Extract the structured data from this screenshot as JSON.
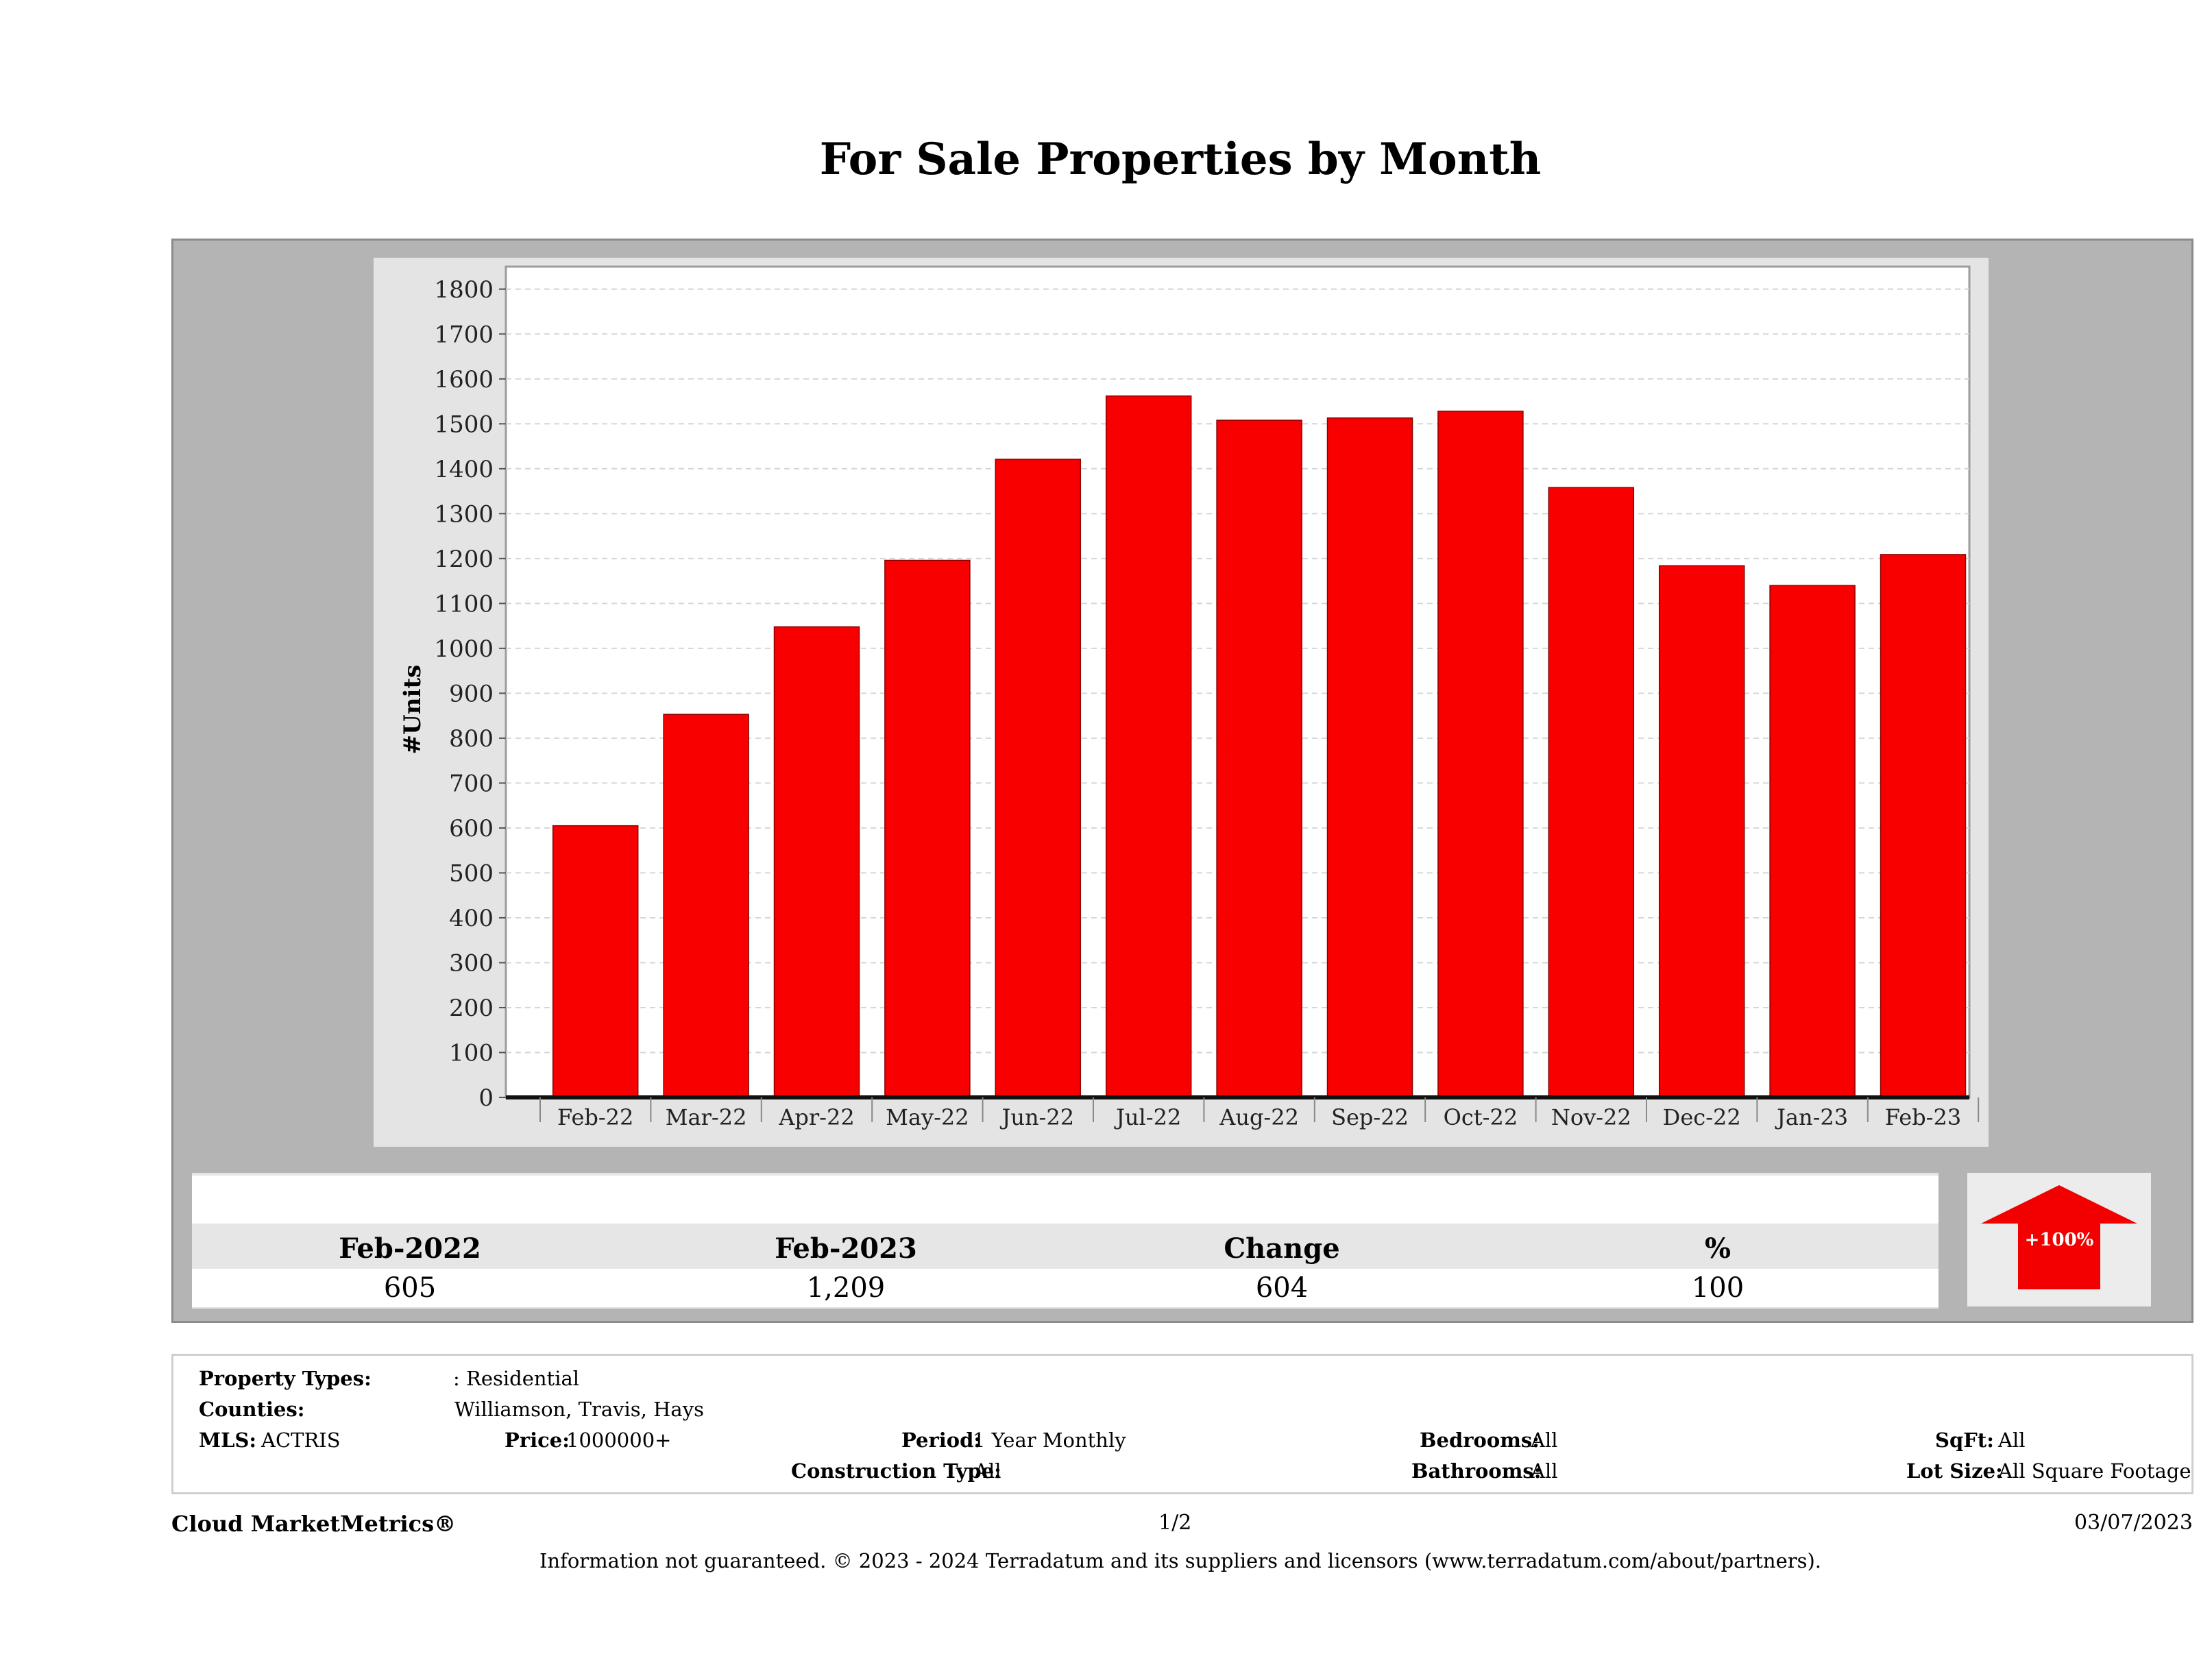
{
  "title": "For Sale Properties by Month",
  "colors": {
    "bar": "#f90000",
    "panel": "#b4b4b4",
    "plot_bg": "#ffffff",
    "arrow": "#f20000"
  },
  "chart_data": {
    "type": "bar",
    "title": "For Sale Properties by Month",
    "xlabel": "",
    "ylabel": "#Units",
    "categories": [
      "Feb-22",
      "Mar-22",
      "Apr-22",
      "May-22",
      "Jun-22",
      "Jul-22",
      "Aug-22",
      "Sep-22",
      "Oct-22",
      "Nov-22",
      "Dec-22",
      "Jan-23",
      "Feb-23"
    ],
    "values": [
      605,
      853,
      1048,
      1196,
      1421,
      1562,
      1508,
      1513,
      1528,
      1358,
      1184,
      1140,
      1209
    ],
    "ylim": [
      0,
      1850
    ],
    "yticks": [
      0,
      100,
      200,
      300,
      400,
      500,
      600,
      700,
      800,
      900,
      1000,
      1100,
      1200,
      1300,
      1400,
      1500,
      1600,
      1700,
      1800
    ],
    "grid": true
  },
  "summary": {
    "headers": [
      "Feb-2022",
      "Feb-2023",
      "Change",
      "%"
    ],
    "values": [
      "605",
      "1,209",
      "604",
      "100"
    ],
    "badge": "+100%"
  },
  "filters": {
    "property_types_label": "Property Types:",
    "property_types_value": ": Residential",
    "counties_label": "Counties:",
    "counties_value": "Williamson, Travis, Hays",
    "mls_label": "MLS:",
    "mls_value": "ACTRIS",
    "price_label": "Price:",
    "price_value": "1000000+",
    "period_label": "Period:",
    "period_value": "1 Year Monthly",
    "construction_label": "Construction Type:",
    "construction_value": "All",
    "bedrooms_label": "Bedrooms:",
    "bedrooms_value": "All",
    "bathrooms_label": "Bathrooms:",
    "bathrooms_value": "All",
    "sqft_label": "SqFt:",
    "sqft_value": "All",
    "lotsize_label": "Lot Size:",
    "lotsize_value": "All Square Footage"
  },
  "footer": {
    "brand": "Cloud MarketMetrics®",
    "page": "1/2",
    "date": "03/07/2023",
    "disclaimer": "Information not guaranteed. © 2023 - 2024 Terradatum and its suppliers and licensors (www.terradatum.com/about/partners)."
  }
}
